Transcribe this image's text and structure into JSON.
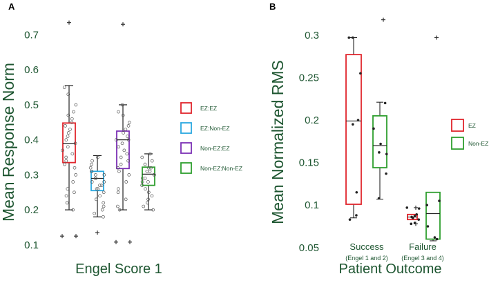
{
  "chart_data": [
    {
      "panel": "A",
      "type": "box",
      "xlabel": "Engel Score 1",
      "ylabel": "Mean Response Norm",
      "ylim": [
        0.08,
        0.76
      ],
      "yticks": [
        0.1,
        0.2,
        0.3,
        0.4,
        0.5,
        0.6,
        0.7
      ],
      "ytick_labels": [
        "0.1",
        "0.2",
        "0.3",
        "0.4",
        "0.5",
        "0.6",
        "0.7"
      ],
      "legend": [
        {
          "label": "EZ:EZ",
          "color": "#e0242b"
        },
        {
          "label": "EZ:Non-EZ",
          "color": "#29a8e0"
        },
        {
          "label": "Non-EZ:EZ",
          "color": "#7b2fb5"
        },
        {
          "label": "Non-EZ:Non-EZ",
          "color": "#2e9e2e"
        }
      ],
      "series": [
        {
          "name": "EZ:EZ",
          "color": "#e0242b",
          "q1": 0.335,
          "median": 0.39,
          "q3": 0.448,
          "whisker_low": 0.2,
          "whisker_high": 0.555,
          "outliers": [
            0.735,
            0.125,
            0.125
          ],
          "points": [
            0.55,
            0.53,
            0.5,
            0.48,
            0.47,
            0.46,
            0.45,
            0.44,
            0.43,
            0.42,
            0.41,
            0.4,
            0.39,
            0.38,
            0.37,
            0.36,
            0.35,
            0.34,
            0.33,
            0.32,
            0.3,
            0.28,
            0.26,
            0.25,
            0.24,
            0.22,
            0.2
          ]
        },
        {
          "name": "EZ:Non-EZ",
          "color": "#29a8e0",
          "q1": 0.255,
          "median": 0.29,
          "q3": 0.31,
          "whisker_low": 0.18,
          "whisker_high": 0.355,
          "outliers": [
            0.135
          ],
          "points": [
            0.35,
            0.34,
            0.33,
            0.32,
            0.31,
            0.31,
            0.3,
            0.3,
            0.29,
            0.29,
            0.28,
            0.28,
            0.27,
            0.27,
            0.26,
            0.26,
            0.25,
            0.24,
            0.23,
            0.22,
            0.21,
            0.2,
            0.19,
            0.18
          ]
        },
        {
          "name": "Non-EZ:EZ",
          "color": "#7b2fb5",
          "q1": 0.318,
          "median": 0.4,
          "q3": 0.425,
          "whisker_low": 0.2,
          "whisker_high": 0.5,
          "outliers": [
            0.73,
            0.108,
            0.108
          ],
          "points": [
            0.5,
            0.48,
            0.47,
            0.45,
            0.44,
            0.43,
            0.42,
            0.41,
            0.4,
            0.4,
            0.39,
            0.38,
            0.37,
            0.36,
            0.35,
            0.34,
            0.33,
            0.32,
            0.31,
            0.3,
            0.28,
            0.26,
            0.25,
            0.23,
            0.21,
            0.2
          ]
        },
        {
          "name": "Non-EZ:Non-EZ",
          "color": "#2e9e2e",
          "q1": 0.27,
          "median": 0.302,
          "q3": 0.322,
          "whisker_low": 0.2,
          "whisker_high": 0.36,
          "outliers": [],
          "points": [
            0.36,
            0.35,
            0.34,
            0.33,
            0.32,
            0.32,
            0.31,
            0.31,
            0.3,
            0.3,
            0.29,
            0.29,
            0.28,
            0.28,
            0.27,
            0.26,
            0.25,
            0.24,
            0.23,
            0.22,
            0.21,
            0.2
          ]
        }
      ]
    },
    {
      "panel": "B",
      "type": "box",
      "xlabel": "Patient Outcome",
      "ylabel": "Mean Normalized RMS",
      "ylim": [
        0.045,
        0.325
      ],
      "yticks": [
        0.05,
        0.1,
        0.15,
        0.2,
        0.25,
        0.3
      ],
      "ytick_labels": [
        "0.05",
        "0.1",
        "0.15",
        "0.2",
        "0.25",
        "0.3"
      ],
      "categories": [
        {
          "label": "Success",
          "sublabel": "(Engel 1 and 2)"
        },
        {
          "label": "Failure",
          "sublabel": "(Engel 3 and 4)"
        }
      ],
      "legend": [
        {
          "label": "EZ",
          "color": "#e0242b"
        },
        {
          "label": "Non-EZ",
          "color": "#2e9e2e"
        }
      ],
      "series": [
        {
          "name": "EZ",
          "category": "Success",
          "color": "#e0242b",
          "q1": 0.101,
          "median": 0.199,
          "q3": 0.277,
          "whisker_low": 0.085,
          "whisker_high": 0.297,
          "outliers": [],
          "points": [
            0.297,
            0.297,
            0.255,
            0.2,
            0.195,
            0.115,
            0.088,
            0.083
          ]
        },
        {
          "name": "Non-EZ",
          "category": "Success",
          "color": "#2e9e2e",
          "q1": 0.144,
          "median": 0.17,
          "q3": 0.205,
          "whisker_low": 0.107,
          "whisker_high": 0.221,
          "outliers": [
            0.318
          ],
          "points": [
            0.22,
            0.19,
            0.172,
            0.16,
            0.162,
            0.137,
            0.108
          ]
        },
        {
          "name": "EZ",
          "category": "Failure",
          "color": "#e0242b",
          "q1": 0.083,
          "median": 0.086,
          "q3": 0.089,
          "whisker_low": 0.083,
          "whisker_high": 0.089,
          "outliers": [
            0.097,
            0.078
          ],
          "points": [
            0.097,
            0.096,
            0.089,
            0.087,
            0.086,
            0.085,
            0.083,
            0.079,
            0.078
          ]
        },
        {
          "name": "Non-EZ",
          "category": "Failure",
          "color": "#2e9e2e",
          "q1": 0.06,
          "median": 0.09,
          "q3": 0.115,
          "whisker_low": 0.058,
          "whisker_high": 0.115,
          "outliers": [
            0.297
          ],
          "points": [
            0.105,
            0.1,
            0.075,
            0.062,
            0.06
          ]
        }
      ]
    }
  ]
}
